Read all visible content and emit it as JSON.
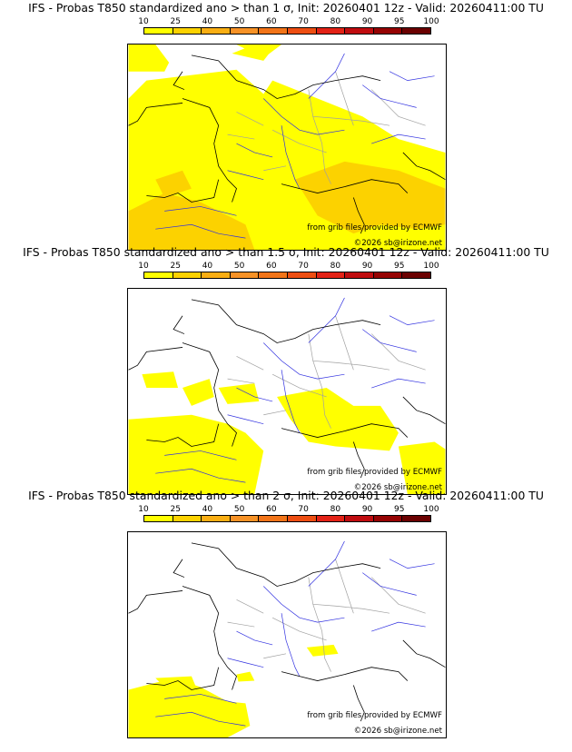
{
  "colorbar": {
    "ticks": [
      "10",
      "25",
      "40",
      "50",
      "60",
      "70",
      "80",
      "90",
      "95",
      "100"
    ],
    "colors": [
      "#ffff00",
      "#fcd200",
      "#f9ae13",
      "#f79226",
      "#f27418",
      "#ee4e12",
      "#e32216",
      "#c00c0f",
      "#960303",
      "#6b0101"
    ]
  },
  "panels": [
    {
      "title": "IFS - Probas T850  standardized ano > than 1 σ, Init: 20260401 12z - Valid: 20260411:00 TU",
      "source": "from grib files provided by ECMWF",
      "copyright": "©2026 sb@irizone.net"
    },
    {
      "title": "IFS - Probas T850  standardized ano > than 1.5 σ, Init: 20260401 12z - Valid: 20260411:00 TU",
      "source": "from grib files provided by ECMWF",
      "copyright": "©2026 sb@irizone.net"
    },
    {
      "title": "IFS - Probas T850  standardized ano > than 2 σ, Init: 20260401 12z - Valid: 20260411:00 TU",
      "source": "from grib files provided by ECMWF",
      "copyright": "©2026 sb@irizone.net"
    }
  ],
  "colors": {
    "coastline": "#000000",
    "rivers": "#3030e0",
    "borders": "#a0a0a0"
  }
}
